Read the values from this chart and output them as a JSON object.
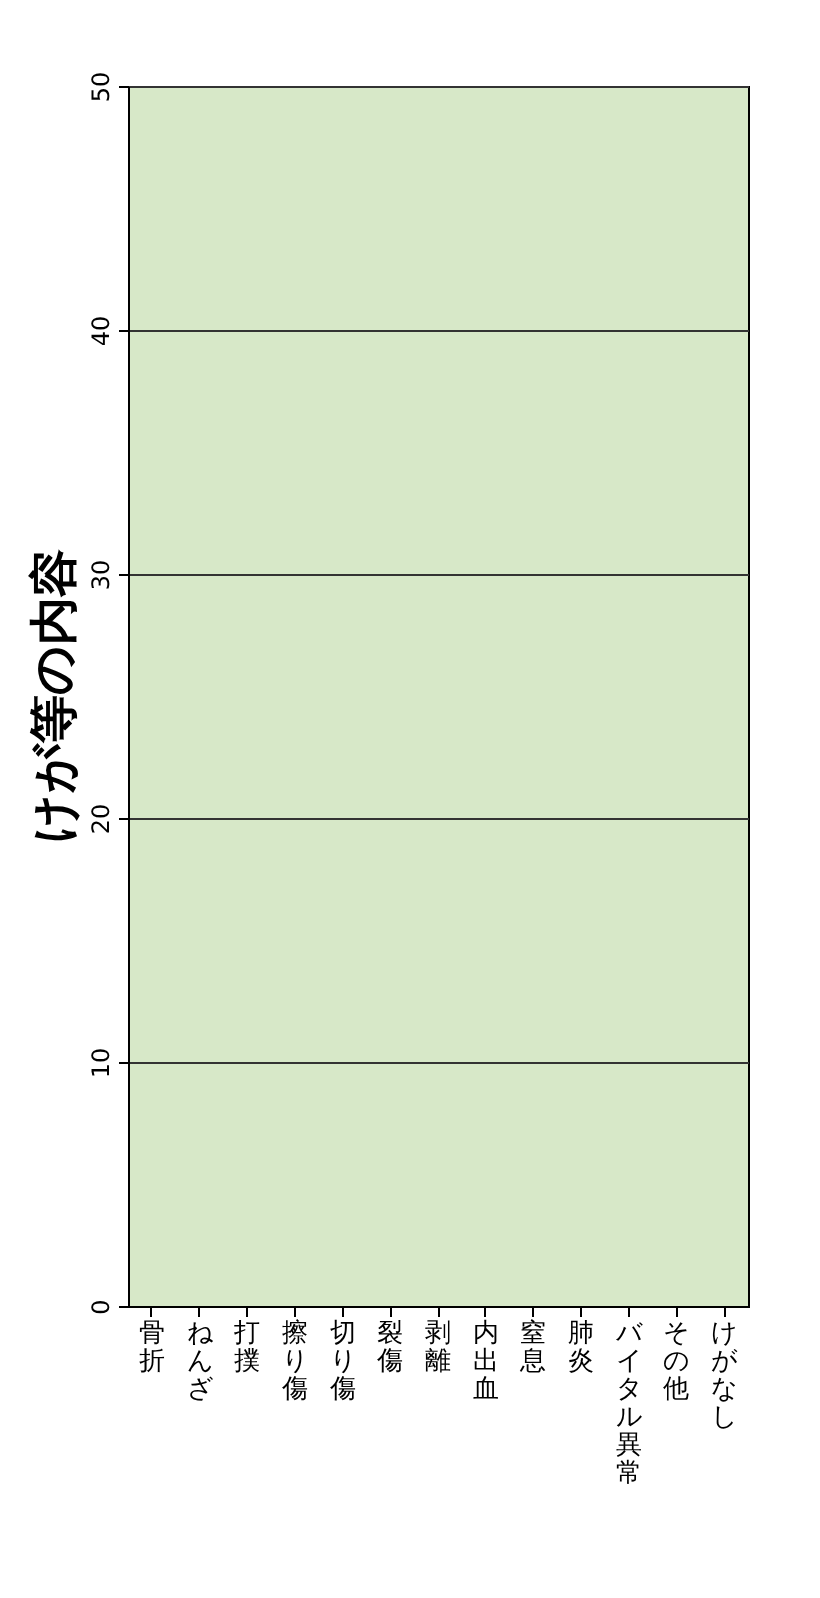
{
  "chart_data": {
    "type": "bar",
    "title": "けが等の内容",
    "categories": [
      "骨折",
      "ねんざ",
      "打撲",
      "擦り傷",
      "切り傷",
      "裂傷",
      "剥離",
      "内出血",
      "窒息",
      "肺炎",
      "バイタル異常",
      "その他",
      "けがなし"
    ],
    "values": [
      0,
      0,
      0,
      0,
      0,
      0,
      0,
      0,
      0,
      0,
      0,
      0,
      0
    ],
    "ylim": [
      0,
      50
    ],
    "yticks": [
      0,
      10,
      20,
      30,
      40,
      50
    ],
    "grid": "y"
  }
}
